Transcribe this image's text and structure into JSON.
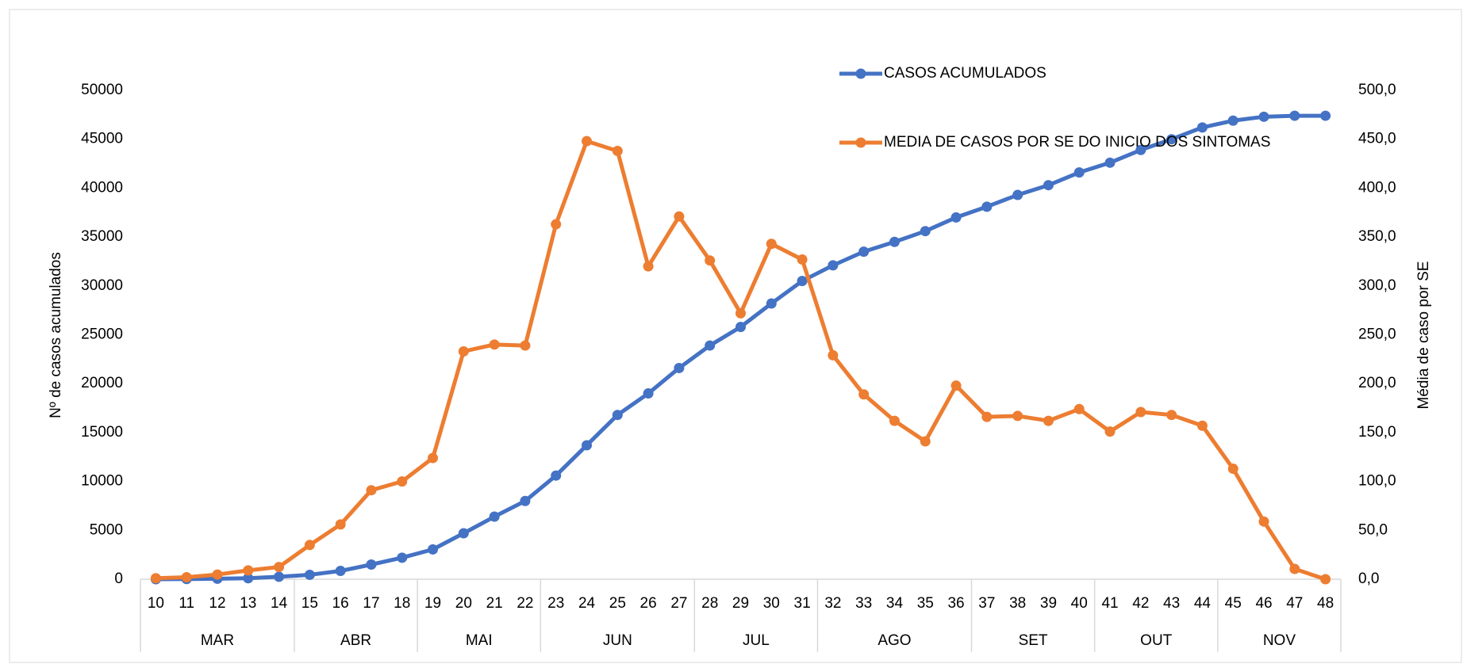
{
  "chart_data": {
    "type": "line",
    "categories": [
      "10",
      "11",
      "12",
      "13",
      "14",
      "15",
      "16",
      "17",
      "18",
      "19",
      "20",
      "21",
      "22",
      "23",
      "24",
      "25",
      "26",
      "27",
      "28",
      "29",
      "30",
      "31",
      "32",
      "33",
      "34",
      "35",
      "36",
      "37",
      "38",
      "39",
      "40",
      "41",
      "42",
      "43",
      "44",
      "45",
      "46",
      "47",
      "48"
    ],
    "groups": [
      {
        "label": "MAR",
        "size": 5
      },
      {
        "label": "ABR",
        "size": 4
      },
      {
        "label": "MAI",
        "size": 4
      },
      {
        "label": "JUN",
        "size": 5
      },
      {
        "label": "JUL",
        "size": 4
      },
      {
        "label": "AGO",
        "size": 5
      },
      {
        "label": "SET",
        "size": 4
      },
      {
        "label": "OUT",
        "size": 4
      },
      {
        "label": "NOV",
        "size": 4
      }
    ],
    "ylabel": "Nº de casos acumulados",
    "y2label": "Média de caso por SE",
    "ylim": [
      0,
      50000
    ],
    "yticks": [
      0,
      5000,
      10000,
      15000,
      20000,
      25000,
      30000,
      35000,
      40000,
      45000,
      50000
    ],
    "y2lim": [
      0,
      500
    ],
    "y2ticks": [
      {
        "value": 0,
        "label": "0,0"
      },
      {
        "value": 50,
        "label": "50,0"
      },
      {
        "value": 100,
        "label": "100,0"
      },
      {
        "value": 150,
        "label": "150,0"
      },
      {
        "value": 200,
        "label": "200,0"
      },
      {
        "value": 250,
        "label": "250,0"
      },
      {
        "value": 300,
        "label": "300,0"
      },
      {
        "value": 350,
        "label": "350,0"
      },
      {
        "value": 400,
        "label": "400,0"
      },
      {
        "value": 450,
        "label": "450,0"
      },
      {
        "value": 500,
        "label": "500,0"
      }
    ],
    "series": [
      {
        "name": "CASOS ACUMULADOS",
        "color": "#4472c4",
        "axis": "y",
        "values": [
          0,
          20,
          50,
          100,
          250,
          450,
          850,
          1500,
          2200,
          3050,
          4700,
          6400,
          8000,
          10600,
          13700,
          16800,
          19000,
          21600,
          23900,
          25800,
          28200,
          30500,
          32100,
          33500,
          34500,
          35600,
          37000,
          38100,
          39300,
          40300,
          41600,
          42600,
          43900,
          45000,
          46200,
          46900,
          47300,
          47400,
          47400
        ]
      },
      {
        "name": "MEDIA DE CASOS POR SE DO INICIO DOS SINTOMAS",
        "color": "#ed7d31",
        "axis": "y2",
        "values": [
          1,
          2,
          4.8,
          9,
          12.5,
          35,
          56,
          91,
          100,
          124,
          233,
          240,
          239,
          363,
          448,
          438,
          320,
          371,
          326,
          272,
          343,
          327,
          229,
          189,
          162,
          141,
          198,
          166,
          167,
          162,
          174,
          151,
          171,
          168,
          157,
          113,
          59,
          10.5,
          0
        ]
      }
    ]
  }
}
